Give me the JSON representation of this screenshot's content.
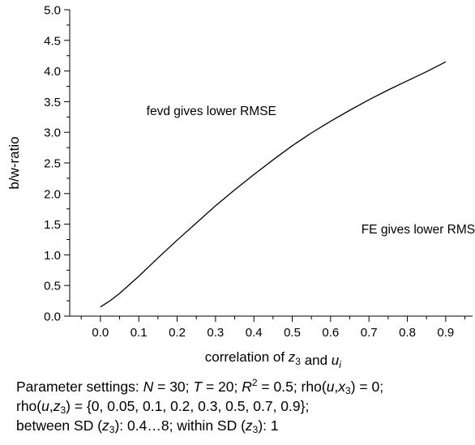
{
  "chart_data": {
    "type": "line",
    "xlabel": "correlation of z3 and ui",
    "ylabel": "b/w-ratio",
    "xlim": [
      -0.08,
      0.97
    ],
    "ylim": [
      0,
      5
    ],
    "xticks": [
      "0.0",
      "0.1",
      "0.2",
      "0.3",
      "0.4",
      "0.5",
      "0.6",
      "0.7",
      "0.8",
      "0.9"
    ],
    "yticks": [
      "0.0",
      "0.5",
      "1.0",
      "1.5",
      "2.0",
      "2.5",
      "3.0",
      "3.5",
      "4.0",
      "4.5",
      "5.0"
    ],
    "grid": false,
    "series": [
      {
        "x": [
          0.0,
          0.025,
          0.05,
          0.1,
          0.15,
          0.2,
          0.25,
          0.3,
          0.35,
          0.4,
          0.45,
          0.5,
          0.55,
          0.6,
          0.65,
          0.7,
          0.75,
          0.8,
          0.85,
          0.9
        ],
        "y": [
          0.15,
          0.25,
          0.37,
          0.65,
          0.95,
          1.24,
          1.52,
          1.8,
          2.06,
          2.31,
          2.55,
          2.78,
          2.99,
          3.18,
          3.36,
          3.53,
          3.69,
          3.84,
          3.99,
          4.15
        ]
      }
    ],
    "annotations": [
      {
        "text": "fevd gives lower RMSE",
        "x": 0.12,
        "y": 3.28
      },
      {
        "text": "FE gives lower RMSE",
        "x": 0.68,
        "y": 1.35
      }
    ]
  },
  "caption": {
    "line1": {
      "prefix": "Parameter settings: ",
      "n_label": "N",
      "n_value": " = 30; ",
      "t_label": "T",
      "t_value": " = 20; ",
      "r_label": "R",
      "r_sup": "2",
      "r_value": " = 0.5; rho(",
      "u": "u",
      "comma": ",",
      "x": "x",
      "x_sub": "3",
      "end": ") = 0;"
    },
    "line2": {
      "prefix": "rho(",
      "u": "u",
      "comma": ",",
      "z": "z",
      "z_sub": "3",
      "end": ") = {0, 0.05, 0.1, 0.2, 0.3, 0.5, 0.7, 0.9};"
    },
    "line3": {
      "a": "between SD (",
      "z1": "z",
      "z1_sub": "3",
      "b": "): 0.4…8; within SD (",
      "z2": "z",
      "z2_sub": "3",
      "c": "): 1"
    }
  }
}
